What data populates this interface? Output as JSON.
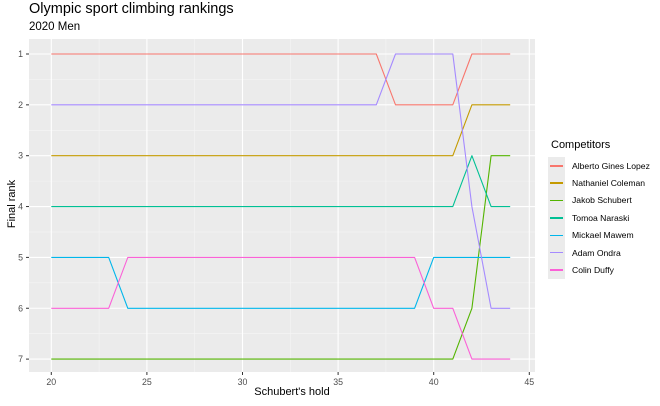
{
  "chart": {
    "title": "Olympic sport climbing rankings",
    "subtitle": "2020 Men",
    "xlabel": "Schubert's hold",
    "ylabel": "Final rank",
    "legend_title": "Competitors"
  },
  "chart_data": {
    "type": "line",
    "title": "Olympic sport climbing rankings",
    "subtitle": "2020 Men",
    "xlabel": "Schubert's hold",
    "ylabel": "Final rank",
    "x": [
      20,
      21,
      22,
      23,
      24,
      25,
      26,
      27,
      28,
      29,
      30,
      31,
      32,
      33,
      34,
      35,
      36,
      37,
      38,
      39,
      40,
      41,
      42,
      43,
      44
    ],
    "xlim": [
      19.1,
      45.3
    ],
    "ylim": [
      7.25,
      0.7
    ],
    "y_reversed": true,
    "x_ticks": [
      20,
      25,
      30,
      35,
      40,
      45
    ],
    "y_ticks": [
      1,
      2,
      3,
      4,
      5,
      6,
      7
    ],
    "grid": true,
    "legend_position": "right",
    "legend_title": "Competitors",
    "series": [
      {
        "name": "Alberto Gines Lopez",
        "color": "#F8766D",
        "values": [
          1,
          1,
          1,
          1,
          1,
          1,
          1,
          1,
          1,
          1,
          1,
          1,
          1,
          1,
          1,
          1,
          1,
          1,
          2,
          2,
          2,
          2,
          1,
          1,
          1
        ]
      },
      {
        "name": "Nathaniel Coleman",
        "color": "#C49A00",
        "values": [
          3,
          3,
          3,
          3,
          3,
          3,
          3,
          3,
          3,
          3,
          3,
          3,
          3,
          3,
          3,
          3,
          3,
          3,
          3,
          3,
          3,
          3,
          2,
          2,
          2
        ]
      },
      {
        "name": "Jakob Schubert",
        "color": "#53B400",
        "values": [
          7,
          7,
          7,
          7,
          7,
          7,
          7,
          7,
          7,
          7,
          7,
          7,
          7,
          7,
          7,
          7,
          7,
          7,
          7,
          7,
          7,
          7,
          6,
          3,
          3
        ]
      },
      {
        "name": "Tomoa Naraski",
        "color": "#00C094",
        "values": [
          4,
          4,
          4,
          4,
          4,
          4,
          4,
          4,
          4,
          4,
          4,
          4,
          4,
          4,
          4,
          4,
          4,
          4,
          4,
          4,
          4,
          4,
          3,
          4,
          4
        ]
      },
      {
        "name": "Mickael Mawem",
        "color": "#00B6EB",
        "values": [
          5,
          5,
          5,
          5,
          6,
          6,
          6,
          6,
          6,
          6,
          6,
          6,
          6,
          6,
          6,
          6,
          6,
          6,
          6,
          6,
          5,
          5,
          5,
          5,
          5
        ]
      },
      {
        "name": "Adam Ondra",
        "color": "#A58AFF",
        "values": [
          2,
          2,
          2,
          2,
          2,
          2,
          2,
          2,
          2,
          2,
          2,
          2,
          2,
          2,
          2,
          2,
          2,
          2,
          1,
          1,
          1,
          1,
          4,
          6,
          6
        ]
      },
      {
        "name": "Colin Duffy",
        "color": "#FB61D7",
        "values": [
          6,
          6,
          6,
          6,
          5,
          5,
          5,
          5,
          5,
          5,
          5,
          5,
          5,
          5,
          5,
          5,
          5,
          5,
          5,
          5,
          6,
          6,
          7,
          7,
          7
        ]
      }
    ]
  }
}
